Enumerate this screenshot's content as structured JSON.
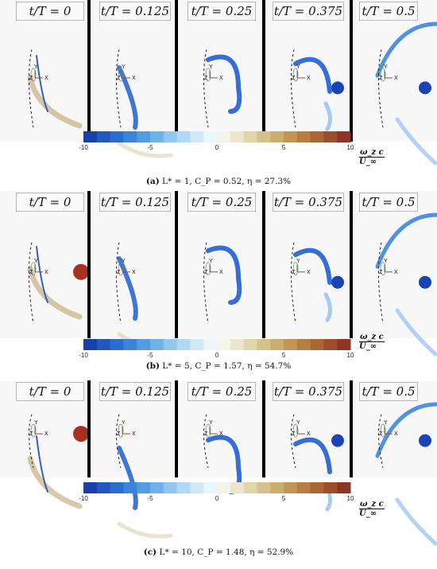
{
  "frame_labels": [
    "t/T = 0",
    "t/T = 0.125",
    "t/T = 0.25",
    "t/T = 0.375",
    "t/T = 0.5"
  ],
  "axis_labels": {
    "y": "Y",
    "z": "Z",
    "x": "X"
  },
  "colorbar": {
    "ticks": [
      "-10",
      "-5",
      "0",
      "5",
      "10"
    ],
    "tick_values": [
      -10,
      -5,
      0,
      5,
      10
    ],
    "range": [
      -10,
      10
    ],
    "label_numerator": "ω_z c",
    "label_denominator": "U_∞",
    "colors": [
      "#1b3fa8",
      "#2256c0",
      "#2b6dcf",
      "#3a85da",
      "#529ce2",
      "#6fb2ea",
      "#90c6f0",
      "#b2d8f5",
      "#d0e8f8",
      "#ecf5fb",
      "#f7f5ea",
      "#ece7cc",
      "#e0d5ab",
      "#d5c28a",
      "#cbad6d",
      "#c19655",
      "#b67e42",
      "#aa6634",
      "#9c4e2a",
      "#8f3524"
    ]
  },
  "panels": [
    {
      "letter": "(a)",
      "caption": "L* = 1, C_P = 0.52, η = 27.3%"
    },
    {
      "letter": "(b)",
      "caption": "L* = 5, C_P = 1.57, η = 54.7%"
    },
    {
      "letter": "(c)",
      "caption": "L* = 10, C_P = 1.48, η = 52.9%"
    }
  ]
}
